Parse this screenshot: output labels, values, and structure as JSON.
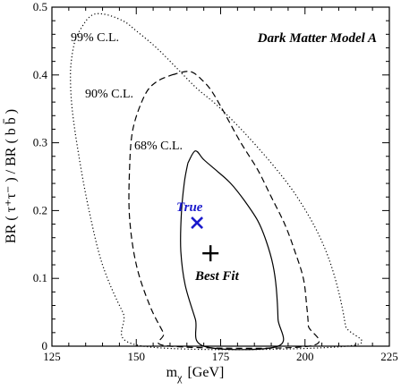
{
  "chart_data": {
    "type": "contour",
    "title": "Dark Matter Model A",
    "xlabel_main": "m",
    "xlabel_sub": "χ",
    "xlabel_unit": "[GeV]",
    "ylabel": "BR ( τ⁺τ⁻ ) / BR ( b b̄ )",
    "xlim": [
      125,
      225
    ],
    "ylim": [
      0,
      0.5
    ],
    "xticks": [
      125,
      150,
      175,
      200,
      225
    ],
    "xtick_labels": [
      "125",
      "150",
      "175",
      "200",
      "225"
    ],
    "yticks": [
      0,
      0.1,
      0.2,
      0.3,
      0.4,
      0.5
    ],
    "ytick_labels": [
      "0",
      "0.1",
      "0.2",
      "0.3",
      "0.4",
      "0.5"
    ],
    "grid": false,
    "contours": [
      {
        "name": "68% C.L.",
        "style": "solid",
        "points": [
          [
            165.3,
            0.27
          ],
          [
            167.5,
            0.288
          ],
          [
            170,
            0.275
          ],
          [
            174,
            0.258
          ],
          [
            178,
            0.24
          ],
          [
            182,
            0.215
          ],
          [
            186,
            0.185
          ],
          [
            188.5,
            0.155
          ],
          [
            190.5,
            0.12
          ],
          [
            191.5,
            0.085
          ],
          [
            192,
            0.04
          ],
          [
            192,
            0.0
          ],
          [
            170,
            0.0
          ],
          [
            167.5,
            0.04
          ],
          [
            164.5,
            0.09
          ],
          [
            163.2,
            0.14
          ],
          [
            163.3,
            0.19
          ],
          [
            164.2,
            0.24
          ],
          [
            165.3,
            0.27
          ]
        ]
      },
      {
        "name": "90% C.L.",
        "style": "dashed",
        "points": [
          [
            160.5,
            0.4
          ],
          [
            166,
            0.405
          ],
          [
            170,
            0.39
          ],
          [
            172.5,
            0.375
          ],
          [
            176,
            0.345
          ],
          [
            181,
            0.3
          ],
          [
            186,
            0.26
          ],
          [
            190,
            0.22
          ],
          [
            194,
            0.18
          ],
          [
            197,
            0.14
          ],
          [
            199.5,
            0.1
          ],
          [
            200.5,
            0.06
          ],
          [
            201,
            0.03
          ],
          [
            201.2,
            0.0
          ],
          [
            160,
            0.0
          ],
          [
            158,
            0.02
          ],
          [
            154,
            0.06
          ],
          [
            150,
            0.12
          ],
          [
            148,
            0.19
          ],
          [
            148,
            0.26
          ],
          [
            149,
            0.32
          ],
          [
            152.5,
            0.37
          ],
          [
            156,
            0.39
          ],
          [
            160.5,
            0.4
          ]
        ]
      },
      {
        "name": "99% C.L.",
        "style": "dotted",
        "points": [
          [
            132,
            0.455
          ],
          [
            136,
            0.485
          ],
          [
            140,
            0.49
          ],
          [
            146,
            0.48
          ],
          [
            150,
            0.465
          ],
          [
            156,
            0.44
          ],
          [
            162,
            0.41
          ],
          [
            168,
            0.38
          ],
          [
            174,
            0.355
          ],
          [
            182,
            0.315
          ],
          [
            190,
            0.27
          ],
          [
            197,
            0.225
          ],
          [
            203,
            0.175
          ],
          [
            207,
            0.13
          ],
          [
            210,
            0.08
          ],
          [
            212,
            0.03
          ],
          [
            212.5,
            0.0
          ],
          [
            152,
            0.0
          ],
          [
            146,
            0.05
          ],
          [
            140,
            0.12
          ],
          [
            136,
            0.2
          ],
          [
            133,
            0.28
          ],
          [
            131,
            0.35
          ],
          [
            130.5,
            0.4
          ],
          [
            131,
            0.43
          ],
          [
            132,
            0.455
          ]
        ]
      }
    ],
    "markers": [
      {
        "name": "True",
        "symbol": "x",
        "x": 168,
        "y": 0.182,
        "color": "#1a1acc"
      },
      {
        "name": "Best Fit",
        "symbol": "+",
        "x": 172,
        "y": 0.137,
        "color": "#000000"
      }
    ]
  }
}
